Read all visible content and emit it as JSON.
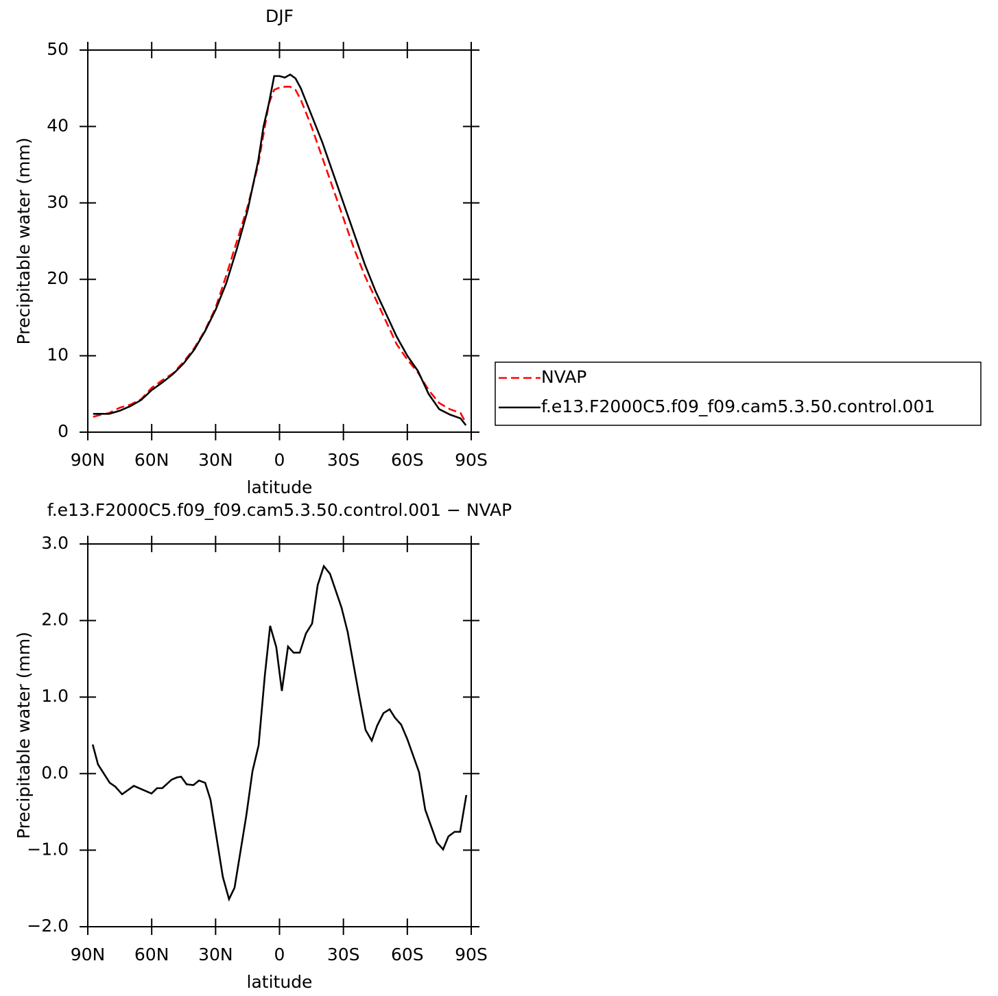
{
  "chart_data": [
    {
      "type": "line",
      "title": "DJF",
      "xlabel": "latitude",
      "ylabel": "Precipitable water (mm)",
      "x": [
        87.5,
        85,
        80,
        75,
        70,
        65,
        60,
        55,
        50,
        45,
        40,
        35,
        30,
        25,
        20,
        15,
        10,
        7.5,
        5,
        2.5,
        0,
        -2.5,
        -5,
        -7.5,
        -10,
        -15,
        -20,
        -25,
        -30,
        -35,
        -40,
        -45,
        -50,
        -55,
        -60,
        -65,
        -70,
        -75,
        -80,
        -85,
        -87.5
      ],
      "series": [
        {
          "name": "NVAP",
          "color": "#ff0000",
          "dash": true,
          "values": [
            2.0,
            2.2,
            2.5,
            3.2,
            3.6,
            4.3,
            5.8,
            6.8,
            7.7,
            9.2,
            11,
            13.3,
            16.3,
            20.5,
            25,
            29.5,
            35,
            39,
            43,
            44.8,
            45.1,
            45.2,
            45.2,
            44.8,
            43.5,
            40,
            36,
            32,
            28,
            24,
            20.5,
            17.5,
            14.5,
            11.5,
            9.5,
            7.8,
            5.5,
            3.8,
            3.0,
            2.5,
            1.2
          ]
        },
        {
          "name": "f.e13.F2000C5.f09_f09.cam5.3.50.control.001",
          "color": "#000000",
          "dash": false,
          "values": [
            2.4,
            2.4,
            2.4,
            2.8,
            3.4,
            4.2,
            5.5,
            6.5,
            7.6,
            9,
            10.8,
            13.2,
            16,
            19.5,
            24,
            29,
            35.5,
            40,
            43,
            46.6,
            46.6,
            46.4,
            46.8,
            46.3,
            45,
            41.5,
            38,
            34,
            30,
            26,
            22,
            18.5,
            15.5,
            12.5,
            10,
            8,
            5,
            3,
            2.3,
            1.8,
            0.9
          ]
        }
      ],
      "xlim": [
        90,
        -90
      ],
      "xticks": [
        {
          "value": 90,
          "label": "90N"
        },
        {
          "value": 60,
          "label": "60N"
        },
        {
          "value": 30,
          "label": "30N"
        },
        0,
        {
          "value": -30,
          "label": "30S"
        },
        {
          "value": -60,
          "label": "60S"
        },
        {
          "value": -90,
          "label": "90S"
        }
      ],
      "ylim": [
        0,
        50
      ],
      "yticks": [
        0,
        10,
        20,
        30,
        40,
        50
      ]
    },
    {
      "type": "line",
      "title": "f.e13.F2000C5.f09_f09.cam5.3.50.control.001  −  NVAP",
      "xlabel": "latitude",
      "ylabel": "Precipitable water (mm)",
      "x": [
        87.7,
        85.2,
        79.7,
        77.1,
        73.9,
        68.4,
        60.1,
        57.5,
        55,
        50.7,
        48.2,
        46.2,
        43.6,
        40.4,
        37.8,
        34.9,
        32.4,
        26.6,
        23.7,
        21.1,
        15.6,
        12.7,
        9.8,
        6.9,
        4.4,
        1.5,
        -1.1,
        -4,
        -6.6,
        -9.5,
        -12.4,
        -15.3,
        -17.9,
        -20.8,
        -23.7,
        -29.1,
        -32,
        -37.5,
        -40.4,
        -43.3,
        -45.9,
        -48.8,
        -51.7,
        -54.2,
        -57.1,
        -60,
        -65.5,
        -68.4,
        -73.9,
        -76.8,
        -79.3,
        -82.2,
        -84.8,
        -87.7
      ],
      "values": [
        0.38,
        0.12,
        -0.12,
        -0.17,
        -0.27,
        -0.16,
        -0.26,
        -0.19,
        -0.19,
        -0.08,
        -0.05,
        -0.04,
        -0.14,
        -0.15,
        -0.09,
        -0.12,
        -0.34,
        -1.35,
        -1.64,
        -1.49,
        -0.55,
        0.03,
        0.37,
        1.28,
        1.93,
        1.65,
        1.08,
        1.66,
        1.58,
        1.58,
        1.83,
        1.96,
        2.46,
        2.71,
        2.61,
        2.17,
        1.85,
        1.0,
        0.57,
        0.43,
        0.63,
        0.79,
        0.84,
        0.73,
        0.64,
        0.45,
        0.02,
        -0.47,
        -0.9,
        -0.99,
        -0.82,
        -0.76,
        -0.76,
        -0.28
      ],
      "color": "#000000",
      "xlim": [
        90,
        -90
      ],
      "xticks": [
        {
          "value": 90,
          "label": "90N"
        },
        {
          "value": 60,
          "label": "60N"
        },
        {
          "value": 30,
          "label": "30N"
        },
        0,
        {
          "value": -30,
          "label": "30S"
        },
        {
          "value": -60,
          "label": "60S"
        },
        {
          "value": -90,
          "label": "90S"
        }
      ],
      "ylim": [
        -2,
        3
      ],
      "yticks": [
        {
          "value": -2,
          "label": "−2.0"
        },
        {
          "value": -1,
          "label": "−1.0"
        },
        {
          "value": 0,
          "label": "0.0"
        },
        {
          "value": 1,
          "label": "1.0"
        },
        {
          "value": 2,
          "label": "2.0"
        },
        {
          "value": 3,
          "label": "3.0"
        }
      ]
    }
  ]
}
